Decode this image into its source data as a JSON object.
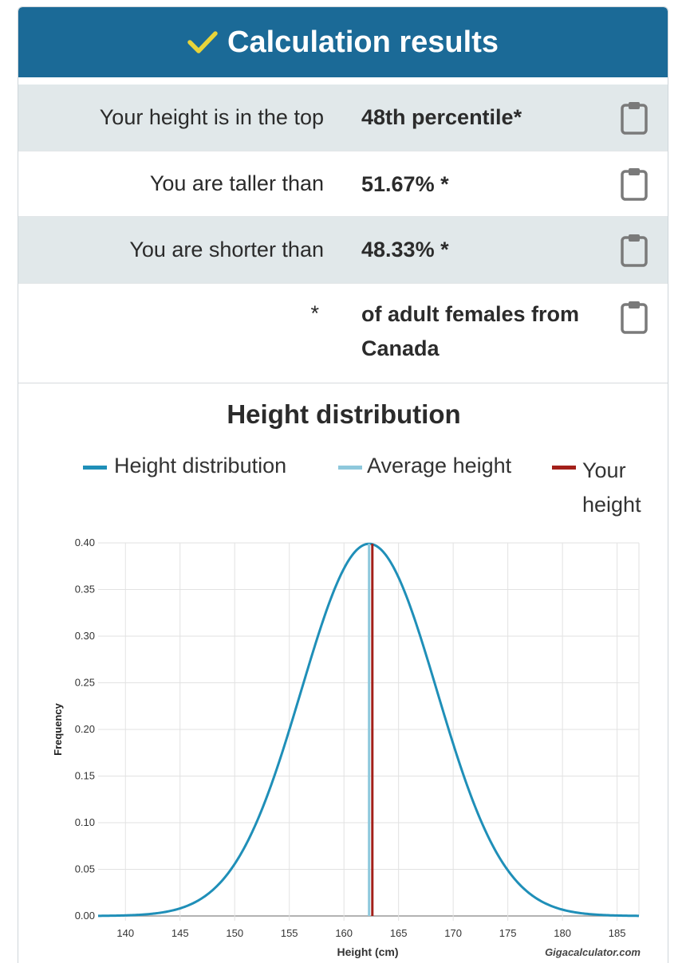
{
  "header": {
    "title": "Calculation results",
    "check_icon": "check-icon",
    "color": "#1b6a97",
    "check_color": "#e8d43a"
  },
  "results": [
    {
      "label": "Your height is in the top",
      "value": "48th percentile*",
      "icon": "clipboard-icon"
    },
    {
      "label": "You are taller than",
      "value": "51.67% *",
      "icon": "clipboard-icon"
    },
    {
      "label": "You are shorter than",
      "value": "48.33% *",
      "icon": "clipboard-icon"
    },
    {
      "label": "*",
      "value": "of adult females from Canada",
      "icon": "clipboard-icon"
    }
  ],
  "chart_data": {
    "type": "line",
    "title": "Height distribution",
    "legend": [
      {
        "name": "Height distribution",
        "color": "#1f8fb8"
      },
      {
        "name": "Average height",
        "color": "#8ec8dc"
      },
      {
        "name": "Your height",
        "color": "#a3201a"
      }
    ],
    "legend_position": "top",
    "xlabel": "Height (cm)",
    "ylabel": "Frequency",
    "xlim": [
      137.5,
      187
    ],
    "ylim": [
      0,
      0.4
    ],
    "x_ticks": [
      "140",
      "145",
      "150",
      "155",
      "160",
      "165",
      "170",
      "175",
      "180",
      "185"
    ],
    "y_ticks": [
      "0.00",
      "0.05",
      "0.10",
      "0.15",
      "0.20",
      "0.25",
      "0.30",
      "0.35",
      "0.40"
    ],
    "grid": true,
    "series": [
      {
        "name": "Height distribution",
        "distribution": "normal",
        "mean": 162.3,
        "sd": 6.2,
        "peak": 0.399
      }
    ],
    "markers": [
      {
        "name": "Average height",
        "x": 162.3
      },
      {
        "name": "Your height",
        "x": 162.6
      }
    ],
    "credit": "Gigacalculator.com"
  }
}
